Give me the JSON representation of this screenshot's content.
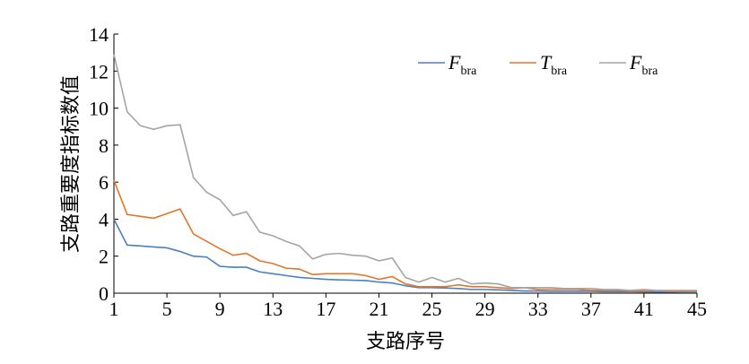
{
  "chart_data": {
    "type": "line",
    "xlabel": "支路序号",
    "ylabel": "支路重要度指标数值",
    "x": [
      1,
      2,
      3,
      4,
      5,
      6,
      7,
      8,
      9,
      10,
      11,
      12,
      13,
      14,
      15,
      16,
      17,
      18,
      19,
      20,
      21,
      22,
      23,
      24,
      25,
      26,
      27,
      28,
      29,
      30,
      31,
      32,
      33,
      34,
      35,
      36,
      37,
      38,
      39,
      40,
      41,
      42,
      43,
      44,
      45
    ],
    "xlim": [
      1,
      45
    ],
    "xticks": [
      1,
      5,
      9,
      13,
      17,
      21,
      25,
      29,
      33,
      37,
      41,
      45
    ],
    "ylim": [
      0,
      14
    ],
    "yticks": [
      0,
      2,
      4,
      6,
      8,
      10,
      12,
      14
    ],
    "legend": "upper right",
    "series": [
      {
        "name": "F",
        "subscript": "bra",
        "color": "#4a7fc1",
        "values": [
          4.0,
          2.6,
          2.55,
          2.5,
          2.45,
          2.25,
          2.0,
          1.95,
          1.45,
          1.4,
          1.4,
          1.15,
          1.05,
          0.95,
          0.85,
          0.8,
          0.75,
          0.72,
          0.7,
          0.68,
          0.6,
          0.55,
          0.4,
          0.3,
          0.3,
          0.28,
          0.25,
          0.2,
          0.2,
          0.18,
          0.15,
          0.12,
          0.12,
          0.1,
          0.1,
          0.1,
          0.1,
          0.08,
          0.08,
          0.08,
          0.07,
          0.06,
          0.06,
          0.05,
          0.05
        ]
      },
      {
        "name": "T",
        "subscript": "bra",
        "color": "#e2762b",
        "values": [
          6.1,
          4.25,
          4.15,
          4.05,
          4.3,
          4.55,
          3.2,
          2.8,
          2.4,
          2.05,
          2.15,
          1.75,
          1.6,
          1.35,
          1.3,
          1.0,
          1.05,
          1.05,
          1.05,
          0.95,
          0.75,
          0.9,
          0.5,
          0.35,
          0.35,
          0.35,
          0.45,
          0.35,
          0.35,
          0.3,
          0.25,
          0.3,
          0.2,
          0.2,
          0.2,
          0.2,
          0.15,
          0.15,
          0.15,
          0.12,
          0.12,
          0.15,
          0.1,
          0.1,
          0.1
        ]
      },
      {
        "name": "F",
        "subscript": "bra",
        "color": "#a5a5a5",
        "values": [
          12.9,
          9.8,
          9.05,
          8.85,
          9.05,
          9.1,
          6.25,
          5.45,
          5.05,
          4.2,
          4.4,
          3.3,
          3.1,
          2.8,
          2.55,
          1.85,
          2.1,
          2.15,
          2.05,
          2.0,
          1.75,
          1.9,
          0.85,
          0.6,
          0.85,
          0.6,
          0.8,
          0.5,
          0.55,
          0.5,
          0.3,
          0.3,
          0.3,
          0.3,
          0.25,
          0.25,
          0.25,
          0.2,
          0.2,
          0.15,
          0.2,
          0.15,
          0.15,
          0.15,
          0.15
        ]
      }
    ]
  }
}
